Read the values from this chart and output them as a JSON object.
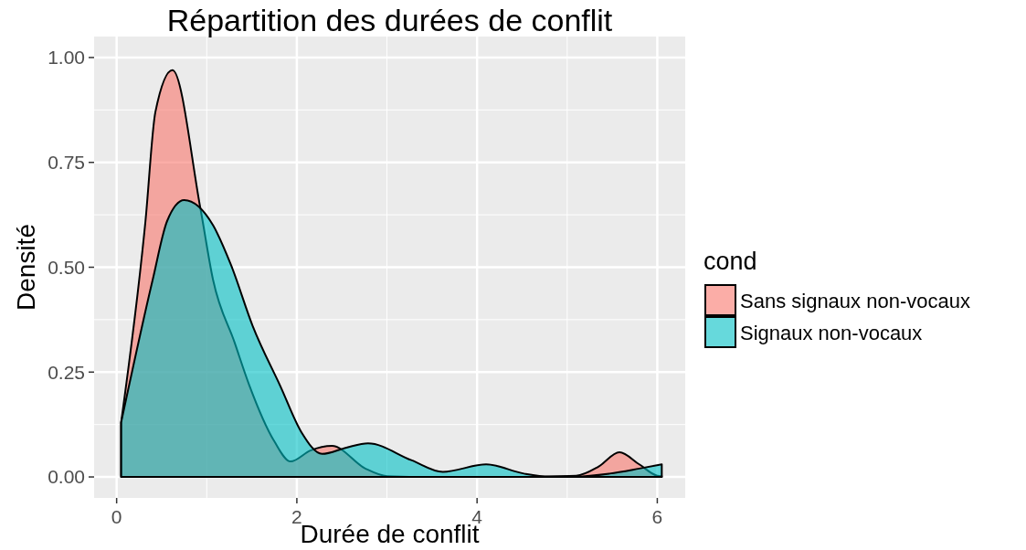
{
  "chart_data": {
    "type": "area",
    "title": "Répartition des durées de conflit",
    "xlabel": "Durée de conflit",
    "ylabel": "Densité",
    "legend_title": "cond",
    "legend": "right",
    "grid": true,
    "xlim": [
      -0.25,
      6.31
    ],
    "ylim": [
      -0.05,
      1.05
    ],
    "xticks": [
      0,
      2,
      4,
      6
    ],
    "yticks": [
      {
        "value": 0,
        "label": "0.00"
      },
      {
        "value": 0.25,
        "label": "0.25"
      },
      {
        "value": 0.5,
        "label": "0.50"
      },
      {
        "value": 0.75,
        "label": "0.75"
      },
      {
        "value": 1,
        "label": "1.00"
      }
    ],
    "series": [
      {
        "name": "Sans signaux non-vocaux",
        "color": "#f8766d",
        "x": [
          0.05,
          0.32,
          0.43,
          0.62,
          0.93,
          1.07,
          1.31,
          1.47,
          1.75,
          1.93,
          2.15,
          2.39,
          2.76,
          3.0,
          3.5,
          4.0,
          4.5,
          5.1,
          5.35,
          5.58,
          5.8,
          6.0,
          6.05
        ],
        "values": [
          0.13,
          0.61,
          0.87,
          0.97,
          0.64,
          0.47,
          0.32,
          0.22,
          0.085,
          0.037,
          0.063,
          0.074,
          0.02,
          0.002,
          0,
          0,
          0,
          0.003,
          0.025,
          0.059,
          0.03,
          0.003,
          0.002
        ]
      },
      {
        "name": "Signaux non-vocaux",
        "color": "#00bfc4",
        "x": [
          0.05,
          0.4,
          0.56,
          0.75,
          1.07,
          1.27,
          1.51,
          1.82,
          2.05,
          2.28,
          2.55,
          2.79,
          3.27,
          3.62,
          4.1,
          4.52,
          4.8,
          5.1,
          5.47,
          5.8,
          6.05
        ],
        "values": [
          0.13,
          0.47,
          0.61,
          0.66,
          0.6,
          0.505,
          0.36,
          0.215,
          0.107,
          0.055,
          0.07,
          0.08,
          0.04,
          0.012,
          0.03,
          0.008,
          0.001,
          0.001,
          0.008,
          0.02,
          0.03
        ]
      }
    ]
  }
}
